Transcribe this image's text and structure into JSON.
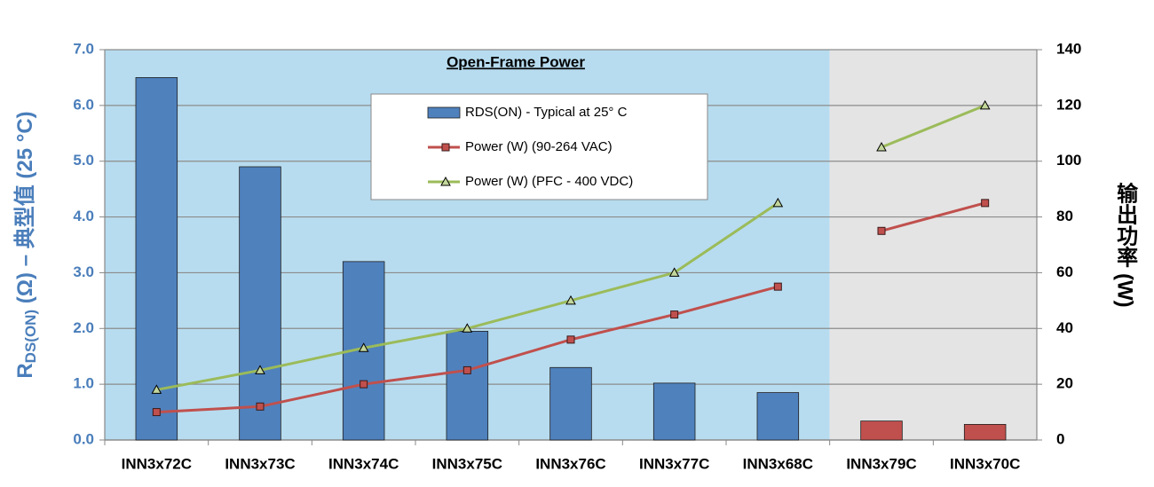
{
  "chart_data": {
    "type": "bar",
    "region_title": "Open-Frame Power",
    "regions": [
      {
        "from": "INN3x72C",
        "to": "INN3x68C",
        "color": "#b7dcef"
      },
      {
        "from": "INN3x79C",
        "to": "INN3x70C",
        "color": "#e4e4e4"
      }
    ],
    "categories": [
      "INN3x72C",
      "INN3x73C",
      "INN3x74C",
      "INN3x75C",
      "INN3x76C",
      "INN3x77C",
      "INN3x68C",
      "INN3x79C",
      "INN3x70C"
    ],
    "y_label": {
      "main": "R",
      "sub": "DS(ON)",
      "rest": " (Ω) – 典型值 (25 °C)"
    },
    "y2_label": "输出功率 (W)",
    "ylim": [
      0,
      7
    ],
    "yticks": [
      {
        "value": 0,
        "label": "0.0"
      },
      {
        "value": 1,
        "label": "1.0"
      },
      {
        "value": 2,
        "label": "2.0"
      },
      {
        "value": 3,
        "label": "3.0"
      },
      {
        "value": 4,
        "label": "4.0"
      },
      {
        "value": 5,
        "label": "5.0"
      },
      {
        "value": 6,
        "label": "6.0"
      },
      {
        "value": 7,
        "label": "7.0"
      }
    ],
    "y2lim": [
      0,
      140
    ],
    "y2ticks": [
      0,
      20,
      40,
      60,
      80,
      100,
      120,
      140
    ],
    "grid": true,
    "series": [
      {
        "name": "RDS(ON) - Typical at 25° C",
        "type": "bar",
        "color": "#4f81bd",
        "colors": [
          "#4f81bd",
          "#4f81bd",
          "#4f81bd",
          "#4f81bd",
          "#4f81bd",
          "#4f81bd",
          "#4f81bd",
          "#c0504d",
          "#c0504d"
        ],
        "values": [
          6.5,
          4.9,
          3.2,
          1.95,
          1.3,
          1.02,
          0.85,
          0.34,
          0.28
        ]
      },
      {
        "name": "Power (W) (90-264 VAC)",
        "type": "line",
        "axis": "y2",
        "color": "#c0504d",
        "marker": "square",
        "values": [
          10,
          12,
          20,
          25,
          36,
          45,
          55,
          75,
          85
        ]
      },
      {
        "name": "Power (W) (PFC - 400 VDC)",
        "type": "line",
        "axis": "y2",
        "color": "#9bbb59",
        "marker": "triangle",
        "values": [
          18,
          25,
          33,
          40,
          50,
          60,
          85,
          105,
          120
        ]
      }
    ]
  }
}
